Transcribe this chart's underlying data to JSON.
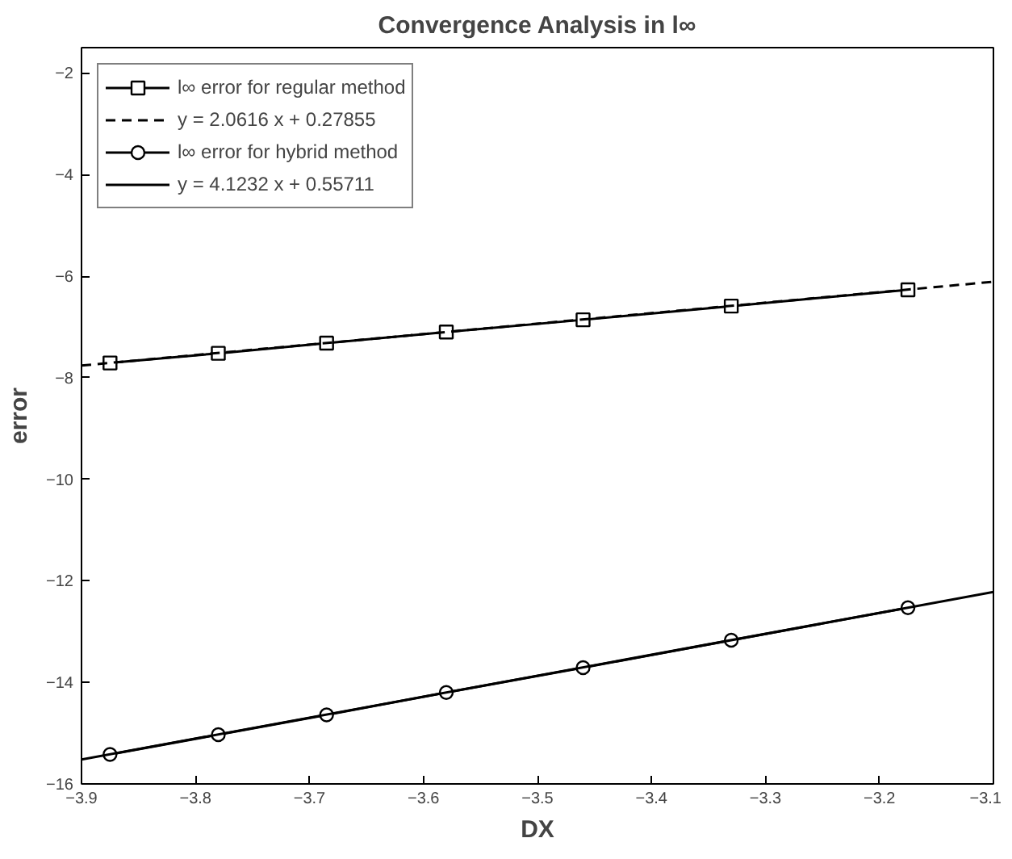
{
  "chart_data": {
    "type": "line",
    "title": "Convergence Analysis in l∞",
    "xlabel": "DX",
    "ylabel": "error",
    "xlim": [
      -3.9,
      -3.1
    ],
    "xticks": [
      -3.9,
      -3.8,
      -3.7,
      -3.6,
      -3.5,
      -3.4,
      -3.3,
      -3.2,
      -3.1
    ],
    "ylim": [
      -16,
      -1.5
    ],
    "yticks": [
      -16,
      -14,
      -12,
      -10,
      -8,
      -6,
      -4,
      -2
    ],
    "grid": false,
    "legend": "top left",
    "series": [
      {
        "name": "l∞ error for regular method",
        "color": "#000000",
        "marker": "square",
        "line_style": "solid",
        "x": [
          -3.875,
          -3.78,
          -3.685,
          -3.58,
          -3.46,
          -3.33,
          -3.175
        ],
        "values": [
          -7.71,
          -7.52,
          -7.32,
          -7.1,
          -6.86,
          -6.59,
          -6.27
        ]
      },
      {
        "name": "y = 2.0616 x + 0.27855",
        "color": "#000000",
        "marker": "none",
        "line_style": "dashed",
        "x": [
          -3.9,
          -3.1
        ],
        "values": [
          -7.76,
          -6.11
        ]
      },
      {
        "name": "l∞ error for hybrid method",
        "color": "#000000",
        "marker": "circle",
        "line_style": "solid",
        "x": [
          -3.875,
          -3.78,
          -3.685,
          -3.58,
          -3.46,
          -3.33,
          -3.175
        ],
        "values": [
          -15.42,
          -15.03,
          -14.64,
          -14.2,
          -13.71,
          -13.17,
          -12.53
        ]
      },
      {
        "name": "y = 4.1232 x + 0.55711",
        "color": "#000000",
        "marker": "none",
        "line_style": "solid",
        "x": [
          -3.9,
          -3.1
        ],
        "values": [
          -15.52,
          -12.22
        ]
      }
    ]
  }
}
